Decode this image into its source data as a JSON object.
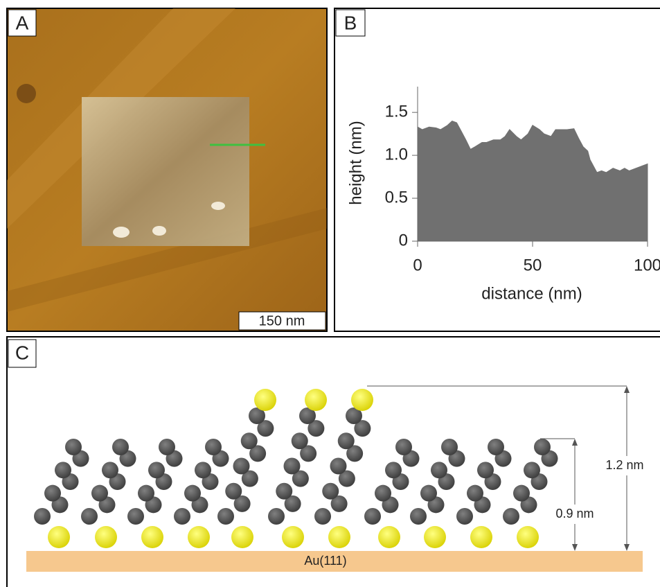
{
  "panel_a": {
    "label": "A",
    "scale_bar": "150 nm"
  },
  "chart_data": {
    "type": "area",
    "panel_label": "B",
    "x_label": "distance (nm)",
    "y_label": "height (nm)",
    "x": [
      0,
      2,
      5,
      8,
      10,
      13,
      15,
      17,
      19,
      21,
      23,
      25,
      28,
      30,
      33,
      36,
      38,
      40,
      43,
      45,
      48,
      50,
      53,
      55,
      58,
      60,
      62,
      65,
      68,
      70,
      72,
      74,
      75,
      77,
      78,
      80,
      82,
      85,
      88,
      90,
      92,
      95,
      98,
      100
    ],
    "values": [
      1.33,
      1.3,
      1.33,
      1.32,
      1.3,
      1.35,
      1.4,
      1.38,
      1.28,
      1.18,
      1.07,
      1.1,
      1.15,
      1.15,
      1.18,
      1.18,
      1.22,
      1.3,
      1.22,
      1.18,
      1.25,
      1.35,
      1.3,
      1.25,
      1.22,
      1.3,
      1.3,
      1.3,
      1.31,
      1.2,
      1.1,
      1.05,
      0.95,
      0.85,
      0.8,
      0.82,
      0.8,
      0.85,
      0.82,
      0.85,
      0.82,
      0.85,
      0.88,
      0.9
    ],
    "color": "#707070",
    "xlim": [
      0,
      100
    ],
    "xticks": [
      0,
      50,
      100
    ],
    "ylim": [
      0,
      1.8
    ],
    "yticks": [
      0,
      0.5,
      {
        "value": 1,
        "label": "1.0"
      },
      1.5
    ]
  },
  "panel_c": {
    "label": "C",
    "tall_height": "1.2 nm",
    "short_height": "0.9 nm",
    "substrate": "Au(111)"
  }
}
